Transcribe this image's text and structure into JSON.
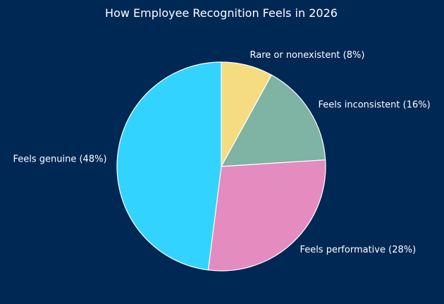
{
  "chart_data": {
    "type": "pie",
    "title": "How Employee Recognition Feels in 2026",
    "slices": [
      {
        "label": "Rare or nonexistent (8%)",
        "value": 8,
        "color": "#F6DC81"
      },
      {
        "label": "Feels inconsistent (16%)",
        "value": 16,
        "color": "#7FB3A3"
      },
      {
        "label": "Feels performative (28%)",
        "value": 28,
        "color": "#E48BC0"
      },
      {
        "label": "Feels genuine (48%)",
        "value": 48,
        "color": "#33D3FF"
      }
    ],
    "start": "top",
    "direction": "clockwise",
    "edge_color": "#FFFFFF",
    "background": "#002855"
  }
}
